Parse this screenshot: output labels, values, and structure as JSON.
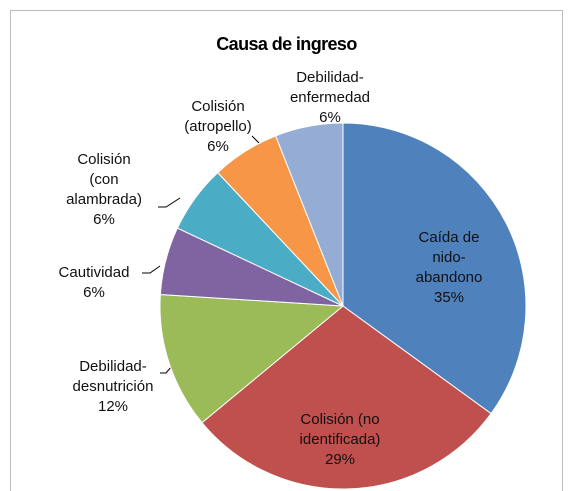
{
  "chart_data": {
    "type": "pie",
    "title": "Causa de ingreso",
    "categories": [
      "Caída de nido-abandono",
      "Colisión (no identificada)",
      "Debilidad-desnutrición",
      "Cautividad",
      "Colisión (con alambrada)",
      "Colisión (atropello)",
      "Debilidad-enfermedad"
    ],
    "values": [
      35,
      29,
      12,
      6,
      6,
      6,
      6
    ],
    "value_labels": [
      "35%",
      "29%",
      "12%",
      "6%",
      "6%",
      "6%",
      "6%"
    ],
    "colors": [
      "#4f81bd",
      "#c0504d",
      "#9bbb59",
      "#8064a2",
      "#4bacc6",
      "#f79646",
      "#95add4"
    ]
  }
}
